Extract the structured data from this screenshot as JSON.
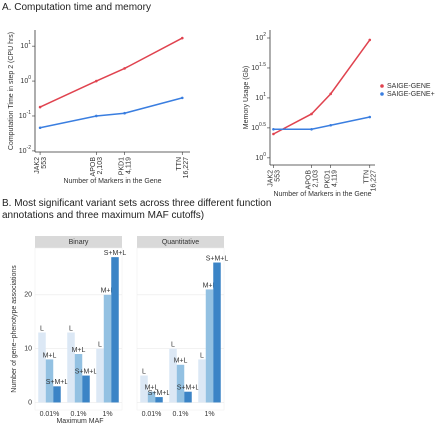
{
  "panel_titles": [
    "A. Computation time and memory",
    "B. Most significant variant sets across three different function annotations and three maximum MAF cutoffs)"
  ],
  "chart_data": [
    {
      "type": "line",
      "xscale": "log",
      "yscale": "log",
      "x_label": "Number of Markers in the Gene",
      "y_label": "Computation Time in step 2 (CPU hrs)",
      "x": [
        553,
        2103,
        4119,
        16227
      ],
      "x_labels": [
        "JAK2",
        "APOB",
        "PKD1",
        "TTN"
      ],
      "xlim": [
        490,
        19500
      ],
      "xticks": [
        553,
        {
          "value": 2103,
          "label": "2,103"
        },
        {
          "value": 4119,
          "label": "4,119"
        },
        {
          "value": 16227,
          "label": "16,227"
        }
      ],
      "ylim": [
        0.0093,
        29
      ],
      "yticks": [
        {
          "value": 0.01,
          "label": "10",
          "exponent": "-2"
        },
        {
          "value": 0.1,
          "label": "10",
          "exponent": "-1"
        },
        {
          "value": 1,
          "label": "10",
          "exponent": "0"
        },
        {
          "value": 10,
          "label": "10",
          "exponent": "1"
        }
      ],
      "series": [
        {
          "color": "#e0434f",
          "values": [
            0.18,
            1.0,
            2.3,
            17
          ]
        },
        {
          "color": "#3a7ee0",
          "values": [
            0.046,
            0.1,
            0.12,
            0.33
          ]
        }
      ]
    },
    {
      "type": "line",
      "xscale": "log",
      "yscale": "log",
      "x_label": "Number of Markers in the Gene",
      "y_label": "Memory Usage (Gb)",
      "x": [
        553,
        2103,
        4119,
        16227
      ],
      "x_labels": [
        "JAK2",
        "APOB",
        "PKD1",
        "TTN"
      ],
      "xlim": [
        490,
        19500
      ],
      "xticks": [
        553,
        {
          "value": 2103,
          "label": "2,103"
        },
        {
          "value": 4119,
          "label": "4,119"
        },
        {
          "value": 16227,
          "label": "16,227"
        }
      ],
      "ylim": [
        0.76,
        136
      ],
      "yticks": [
        {
          "value": 1,
          "label": "10",
          "exponent": "0"
        },
        {
          "value": 3.162,
          "label": "10",
          "exponent": "0.5"
        },
        {
          "value": 10,
          "label": "10",
          "exponent": "1"
        },
        {
          "value": 31.62,
          "label": "10",
          "exponent": "1.5"
        },
        {
          "value": 100,
          "label": "10",
          "exponent": "2"
        }
      ],
      "legend": "right",
      "series": [
        {
          "name": "SAIGE-GENE",
          "color": "#e0434f",
          "values": [
            2.5,
            5.4,
            11.7,
            93
          ]
        },
        {
          "name": "SAIGE-GENE+",
          "color": "#3a7ee0",
          "values": [
            3.0,
            3.0,
            3.5,
            4.8
          ]
        }
      ]
    },
    {
      "type": "bar",
      "x_label": "Maximum MAF",
      "y_label": "Number of gene−phenotype associations",
      "categories": [
        "0.01%",
        "0.1%",
        "1%"
      ],
      "ylim": [
        -1.4,
        28.7
      ],
      "yticks": [
        0,
        10,
        20
      ],
      "grid": true,
      "facets": [
        {
          "title": "Binary",
          "series": [
            {
              "name": "L",
              "color": "#dce8f5",
              "values": [
                13,
                13,
                10
              ]
            },
            {
              "name": "M+L",
              "color": "#93c1e2",
              "values": [
                8,
                9,
                20
              ]
            },
            {
              "name": "S+M+L",
              "color": "#3b84c6",
              "values": [
                3,
                5,
                27
              ]
            }
          ]
        },
        {
          "title": "Quantitative",
          "series": [
            {
              "name": "L",
              "color": "#dce8f5",
              "values": [
                5,
                10,
                8
              ]
            },
            {
              "name": "M+L",
              "color": "#93c1e2",
              "values": [
                2,
                7,
                21
              ]
            },
            {
              "name": "S+M+L",
              "color": "#3b84c6",
              "values": [
                1,
                2,
                26
              ]
            }
          ]
        }
      ]
    }
  ]
}
